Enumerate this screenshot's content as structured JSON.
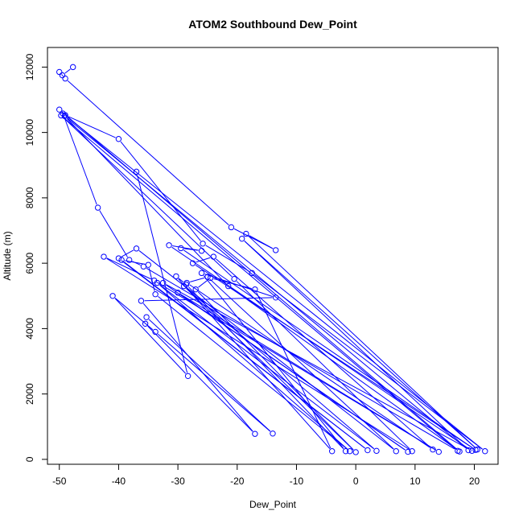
{
  "chart_data": {
    "type": "line",
    "title": "ATOM2 Southbound Dew_Point",
    "xlabel": "Dew_Point",
    "ylabel": "Altitude (m)",
    "xlim": [
      -52,
      24
    ],
    "ylim": [
      -150,
      12600
    ],
    "xticks": [
      -50,
      -40,
      -30,
      -20,
      -10,
      0,
      10,
      20
    ],
    "yticks": [
      0,
      2000,
      4000,
      6000,
      8000,
      10000,
      12000
    ],
    "grid": false,
    "legend": "none",
    "series": [
      {
        "color": "#0000ff",
        "marker": "open-circle",
        "x": [
          -47.7,
          -49.5,
          -50.0,
          -49.0,
          -21.0,
          -13.5,
          -18.5,
          20.5,
          -19.2,
          19.0,
          -49.1,
          -21.5,
          17.5,
          -50.0,
          -49.0,
          -40.0,
          -25.8,
          -17.5,
          21.8,
          -49.4,
          -43.5,
          -38.2,
          -35.8,
          17.2,
          -49.7,
          -20.5,
          9.5,
          -42.5,
          -34.0,
          14.0,
          -30.0,
          8.8,
          -32.5,
          19.6,
          -31.5,
          -26.0,
          -29.5,
          20.2,
          -27.5,
          -24.0,
          13.0,
          -28.5,
          -25.0,
          6.8,
          -37.0,
          -40.0,
          2.0,
          -39.5,
          -35.0,
          -33.8,
          -1.0,
          -33.5,
          3.5,
          -29.0,
          0.0,
          -27.0,
          -24.5,
          -17.0,
          -4.0,
          -30.3,
          -28.6,
          -1.7,
          -26.0,
          -13.5,
          -36.2,
          -17.0,
          -35.5,
          -35.3,
          -14.0,
          -33.8,
          -41.0,
          -28.3,
          -37.0
        ],
        "y": [
          12000,
          11750,
          11850,
          11650,
          7100,
          6400,
          6900,
          300,
          6750,
          280,
          10500,
          5300,
          240,
          10700,
          10530,
          9800,
          6600,
          5700,
          250,
          10580,
          7700,
          6100,
          5900,
          260,
          10520,
          5520,
          250,
          6200,
          5470,
          230,
          5100,
          230,
          5400,
          260,
          6550,
          6380,
          6460,
          290,
          6000,
          6200,
          300,
          5400,
          5580,
          250,
          6450,
          6150,
          280,
          6100,
          5950,
          5050,
          250,
          5400,
          260,
          5300,
          220,
          5200,
          5550,
          5200,
          250,
          5600,
          5350,
          250,
          5700,
          4950,
          4850,
          780,
          4150,
          4350,
          790,
          3900,
          5000,
          2550,
          8800
        ]
      }
    ]
  }
}
